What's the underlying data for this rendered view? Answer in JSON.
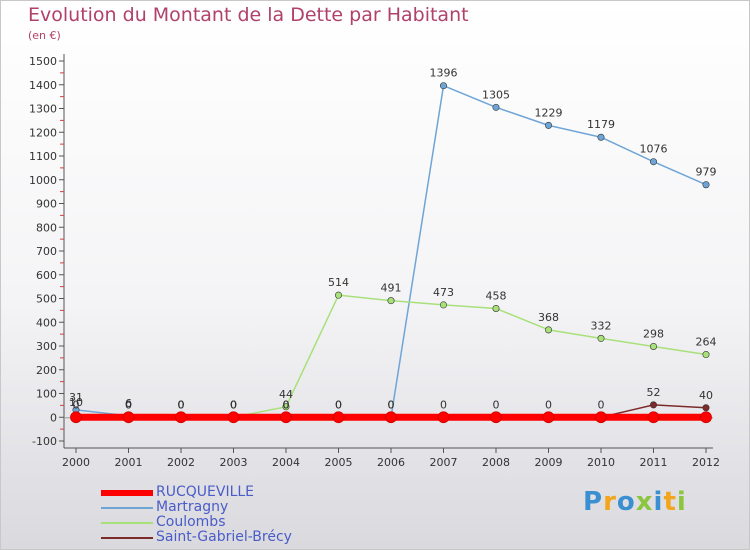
{
  "header": {
    "title": "Evolution du Montant de la Dette par Habitant",
    "unit": "(en €)"
  },
  "chart_data": {
    "type": "line",
    "title": "Evolution du Montant de la Dette par Habitant",
    "ylabel": "(en €)",
    "xlabel": "",
    "ylim": [
      -100,
      1500
    ],
    "yticks": [
      "-100",
      "0",
      "100",
      "200",
      "300",
      "400",
      "500",
      "600",
      "700",
      "800",
      "900",
      "1000",
      "1100",
      "1200",
      "1300",
      "1400",
      "1500"
    ],
    "categories": [
      "2000",
      "2001",
      "2002",
      "2003",
      "2004",
      "2005",
      "2006",
      "2007",
      "2008",
      "2009",
      "2010",
      "2011",
      "2012"
    ],
    "grid": "none",
    "series": [
      {
        "name": "RUCQUEVILLE",
        "color": "#ff0000",
        "values": [
          0,
          0,
          0,
          0,
          0,
          0,
          0,
          0,
          0,
          0,
          0,
          0,
          0
        ],
        "labels": [
          "",
          "",
          "",
          "",
          "",
          "",
          "",
          "",
          "",
          "",
          "",
          "",
          ""
        ]
      },
      {
        "name": "Martragny",
        "color": "#6fa5d6",
        "values": [
          31,
          6,
          0,
          0,
          0,
          0,
          0,
          1396,
          1305,
          1229,
          1179,
          1076,
          979
        ],
        "labels": [
          "31",
          "6",
          "0",
          "0",
          "0",
          "0",
          "0",
          "1396",
          "1305",
          "1229",
          "1179",
          "1076",
          "979"
        ]
      },
      {
        "name": "Coulombs",
        "color": "#a8e07a",
        "values": [
          10,
          0,
          0,
          0,
          44,
          514,
          491,
          473,
          458,
          368,
          332,
          298,
          264
        ],
        "labels": [
          "10",
          "0",
          "0",
          "0",
          "44",
          "514",
          "491",
          "473",
          "458",
          "368",
          "332",
          "298",
          "264"
        ]
      },
      {
        "name": "Saint-Gabriel-Brécy",
        "color": "#7d2a2a",
        "values": [
          0,
          0,
          0,
          0,
          0,
          0,
          0,
          0,
          0,
          0,
          0,
          52,
          40
        ],
        "labels": [
          "0",
          "0",
          "0",
          "0",
          "0",
          "0",
          "0",
          "0",
          "0",
          "0",
          "0",
          "52",
          "40"
        ]
      }
    ]
  },
  "legend": {
    "items": [
      {
        "name": "RUCQUEVILLE",
        "color": "#ff0000"
      },
      {
        "name": "Martragny",
        "color": "#6fa5d6"
      },
      {
        "name": "Coulombs",
        "color": "#a8e07a"
      },
      {
        "name": "Saint-Gabriel-Brécy",
        "color": "#7d2a2a"
      }
    ]
  },
  "brand": {
    "letters": [
      "P",
      "r",
      "o",
      "x",
      "i",
      "t",
      "i"
    ],
    "colors": [
      "#3a8fd0",
      "#f2a51d",
      "#3a8fd0",
      "#8cc63f",
      "#3a8fd0",
      "#f2a51d",
      "#8cc63f"
    ]
  }
}
